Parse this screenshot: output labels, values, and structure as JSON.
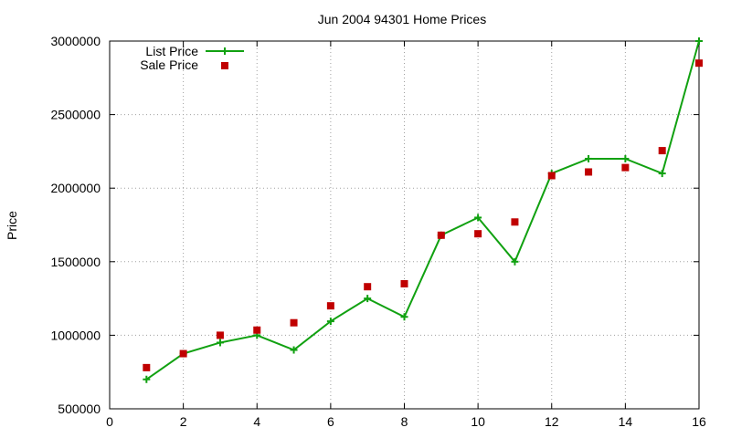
{
  "chart_data": {
    "type": "line",
    "title": "Jun 2004 94301 Home Prices",
    "ylabel": "Price",
    "xlabel": "",
    "xlim": [
      0,
      16
    ],
    "ylim": [
      500000,
      3000000
    ],
    "x_ticks": [
      "0",
      "2",
      "4",
      "6",
      "8",
      "10",
      "12",
      "14",
      "16"
    ],
    "y_ticks": [
      "500000",
      "1000000",
      "1500000",
      "2000000",
      "2500000",
      "3000000"
    ],
    "grid": true,
    "legend_position": "top-left",
    "series": [
      {
        "name": "List Price",
        "kind": "line-with-plus-markers",
        "color": "#11a111",
        "x": [
          1,
          2,
          3,
          4,
          5,
          6,
          7,
          8,
          9,
          10,
          11,
          12,
          13,
          14,
          15,
          16
        ],
        "y": [
          700000,
          875000,
          950000,
          1000000,
          900000,
          1095000,
          1250000,
          1125000,
          1680000,
          1800000,
          1500000,
          2100000,
          2200000,
          2200000,
          2100000,
          3000000
        ]
      },
      {
        "name": "Sale Price",
        "kind": "square-points",
        "color": "#c00000",
        "x": [
          1,
          2,
          3,
          4,
          5,
          6,
          7,
          8,
          9,
          10,
          11,
          12,
          13,
          14,
          15,
          16
        ],
        "y": [
          780000,
          875000,
          1000000,
          1035000,
          1085000,
          1200000,
          1330000,
          1350000,
          1680000,
          1690000,
          1770000,
          2085000,
          2110000,
          2140000,
          2255000,
          2850000
        ]
      }
    ]
  }
}
